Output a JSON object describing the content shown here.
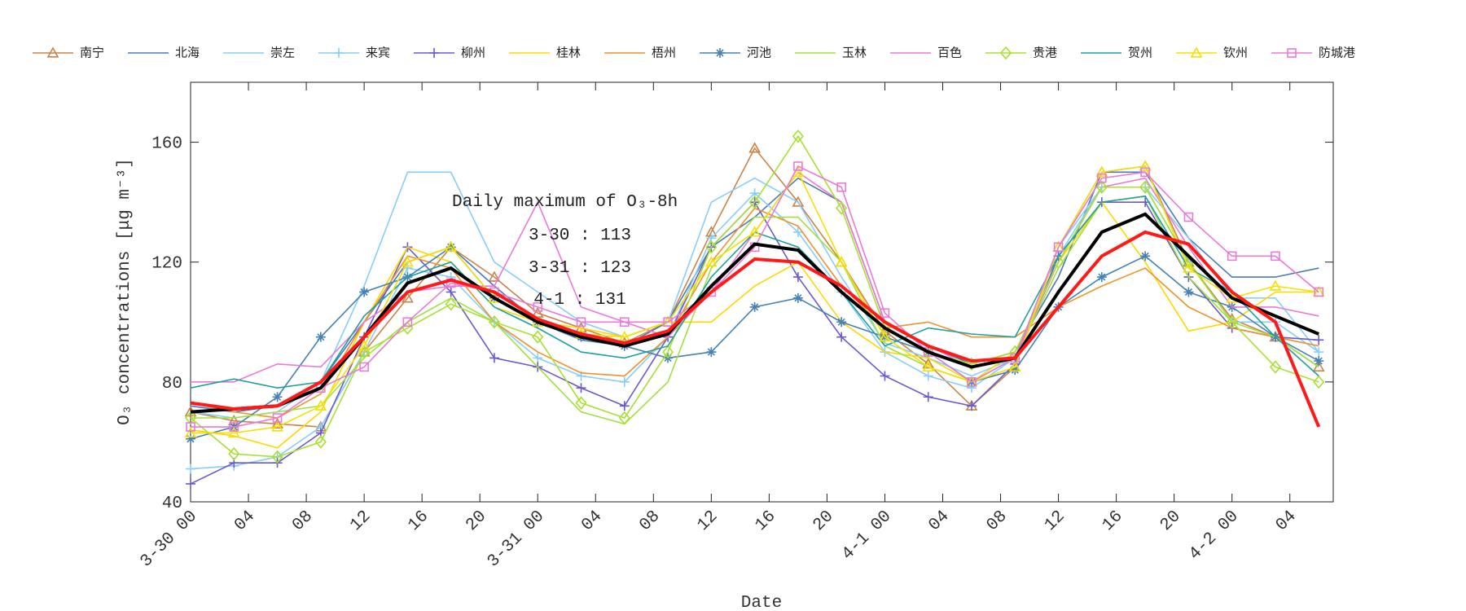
{
  "chart_data": {
    "type": "line",
    "xlabel": "Date",
    "ylabel": "O₃ concentrations [μg m⁻³]",
    "annotations": [
      "Daily maximum of O₃-8h",
      "3-30 : 113",
      "3-31 : 123",
      "4-1 : 131"
    ],
    "xlim": [
      0,
      79
    ],
    "ylim": [
      40,
      180
    ],
    "yticks": [
      40,
      80,
      120,
      160
    ],
    "xticks": [
      {
        "value": 0,
        "label": "3-30 00"
      },
      {
        "value": 4,
        "label": "04"
      },
      {
        "value": 8,
        "label": "08"
      },
      {
        "value": 12,
        "label": "12"
      },
      {
        "value": 16,
        "label": "16"
      },
      {
        "value": 20,
        "label": "20"
      },
      {
        "value": 24,
        "label": "3-31 00"
      },
      {
        "value": 28,
        "label": "04"
      },
      {
        "value": 32,
        "label": "08"
      },
      {
        "value": 36,
        "label": "12"
      },
      {
        "value": 40,
        "label": "16"
      },
      {
        "value": 44,
        "label": "20"
      },
      {
        "value": 48,
        "label": "4-1 00"
      },
      {
        "value": 52,
        "label": "04"
      },
      {
        "value": 56,
        "label": "08"
      },
      {
        "value": 60,
        "label": "12"
      },
      {
        "value": 64,
        "label": "16"
      },
      {
        "value": 68,
        "label": "20"
      },
      {
        "value": 72,
        "label": "4-2 00"
      },
      {
        "value": 76,
        "label": "04"
      }
    ],
    "x": [
      0,
      3,
      6,
      9,
      12,
      15,
      18,
      21,
      24,
      27,
      30,
      33,
      36,
      39,
      42,
      45,
      48,
      51,
      54,
      57,
      60,
      63,
      66,
      69,
      72,
      75,
      78
    ],
    "series": [
      {
        "name": "南宁",
        "color": "#c8844a",
        "marker": "triangle",
        "values": [
          70,
          67,
          66,
          65,
          90,
          108,
          125,
          115,
          103,
          98,
          93,
          100,
          130,
          158,
          140,
          120,
          97,
          86,
          72,
          85,
          125,
          150,
          152,
          120,
          101,
          95,
          85
        ]
      },
      {
        "name": "北海",
        "color": "#4a7ab8",
        "marker": "none",
        "values": [
          72,
          70,
          72,
          80,
          100,
          120,
          125,
          112,
          100,
          94,
          92,
          100,
          125,
          135,
          148,
          140,
          100,
          92,
          86,
          90,
          115,
          150,
          150,
          128,
          115,
          115,
          118
        ]
      },
      {
        "name": "崇左",
        "color": "#87cefa",
        "marker": "none",
        "values": [
          70,
          68,
          70,
          80,
          112,
          150,
          150,
          120,
          110,
          100,
          95,
          100,
          140,
          148,
          140,
          115,
          93,
          88,
          82,
          88,
          125,
          145,
          145,
          128,
          108,
          108,
          90
        ]
      },
      {
        "name": "来宾",
        "color": "#87cefa",
        "marker": "plus",
        "values": [
          51,
          52,
          55,
          65,
          90,
          118,
          115,
          100,
          88,
          82,
          80,
          95,
          128,
          143,
          130,
          110,
          90,
          82,
          78,
          88,
          122,
          145,
          145,
          120,
          100,
          100,
          90
        ]
      },
      {
        "name": "柳州",
        "color": "#6a5acd",
        "marker": "plus",
        "values": [
          46,
          53,
          53,
          63,
          95,
          125,
          110,
          88,
          85,
          78,
          72,
          95,
          125,
          140,
          115,
          95,
          82,
          75,
          72,
          86,
          122,
          140,
          140,
          115,
          98,
          95,
          94
        ]
      },
      {
        "name": "桂林",
        "color": "#ffd700",
        "marker": "none",
        "values": [
          64,
          62,
          58,
          70,
          100,
          125,
          120,
          105,
          100,
          98,
          95,
          100,
          100,
          112,
          120,
          100,
          90,
          88,
          80,
          90,
          120,
          140,
          120,
          97,
          100,
          110,
          110
        ]
      },
      {
        "name": "梧州",
        "color": "#f0922b",
        "marker": "none",
        "values": [
          73,
          70,
          68,
          76,
          100,
          122,
          118,
          100,
          90,
          83,
          82,
          95,
          120,
          138,
          132,
          112,
          98,
          100,
          95,
          95,
          105,
          112,
          118,
          105,
          98,
          95,
          92
        ]
      },
      {
        "name": "河池",
        "color": "#4682b4",
        "marker": "asterisk",
        "values": [
          61,
          65,
          75,
          95,
          110,
          115,
          125,
          108,
          100,
          95,
          92,
          88,
          90,
          105,
          108,
          100,
          95,
          90,
          80,
          84,
          105,
          115,
          122,
          110,
          105,
          95,
          87
        ]
      },
      {
        "name": "玉林",
        "color": "#a0e040",
        "marker": "none",
        "values": [
          68,
          68,
          70,
          72,
          88,
          100,
          108,
          100,
          85,
          70,
          66,
          80,
          118,
          135,
          135,
          120,
          92,
          85,
          80,
          88,
          118,
          140,
          142,
          115,
          100,
          95,
          85
        ]
      },
      {
        "name": "百色",
        "color": "#e87ad8",
        "marker": "none",
        "values": [
          80,
          80,
          86,
          85,
          100,
          110,
          112,
          112,
          140,
          105,
          100,
          95,
          110,
          130,
          150,
          140,
          100,
          92,
          85,
          88,
          120,
          145,
          148,
          125,
          105,
          105,
          102
        ]
      },
      {
        "name": "贵港",
        "color": "#a8e030",
        "marker": "diamond",
        "values": [
          68,
          56,
          55,
          60,
          90,
          98,
          106,
          100,
          95,
          73,
          68,
          90,
          125,
          140,
          162,
          138,
          98,
          90,
          86,
          90,
          120,
          145,
          145,
          120,
          100,
          85,
          80
        ]
      },
      {
        "name": "贺州",
        "color": "#20a0a0",
        "marker": "none",
        "values": [
          78,
          81,
          78,
          80,
          102,
          115,
          120,
          105,
          98,
          90,
          88,
          92,
          115,
          130,
          125,
          110,
          92,
          98,
          96,
          95,
          122,
          140,
          142,
          118,
          110,
          95,
          82
        ]
      },
      {
        "name": "钦州",
        "color": "#f5e000",
        "marker": "triangle",
        "values": [
          63,
          63,
          65,
          72,
          92,
          120,
          125,
          108,
          100,
          96,
          95,
          100,
          120,
          130,
          150,
          120,
          95,
          85,
          80,
          85,
          125,
          150,
          152,
          118,
          108,
          112,
          110
        ]
      },
      {
        "name": "防城港",
        "color": "#e87ad8",
        "marker": "square",
        "values": [
          65,
          65,
          68,
          78,
          85,
          100,
          113,
          110,
          105,
          100,
          100,
          100,
          110,
          125,
          152,
          145,
          103,
          90,
          80,
          88,
          125,
          148,
          150,
          135,
          122,
          122,
          110
        ]
      },
      {
        "color": "#000000",
        "marker": "none",
        "width": 4,
        "values": [
          70,
          71,
          72,
          78,
          95,
          113,
          118,
          108,
          100,
          95,
          92,
          96,
          112,
          126,
          124,
          110,
          98,
          90,
          85,
          88,
          110,
          130,
          136,
          122,
          108,
          102,
          96
        ]
      },
      {
        "color": "#ff1a1a",
        "marker": "none",
        "width": 4,
        "values": [
          73,
          71,
          72,
          80,
          95,
          110,
          114,
          110,
          101,
          96,
          93,
          97,
          110,
          121,
          120,
          112,
          100,
          92,
          87,
          88,
          105,
          122,
          130,
          126,
          110,
          100,
          65
        ]
      }
    ]
  }
}
